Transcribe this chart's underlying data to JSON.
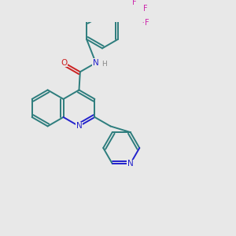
{
  "background_color": "#e8e8e8",
  "bond_color": "#2d7d7d",
  "nitrogen_color": "#2222cc",
  "oxygen_color": "#cc2222",
  "fluorine_color": "#cc22aa",
  "nh_color": "#888888",
  "lw": 1.4,
  "font_size": 7.5,
  "atoms": {
    "O": {
      "color": "#cc2222"
    },
    "N": {
      "color": "#2222cc"
    },
    "F": {
      "color": "#cc22aa"
    },
    "NH": {
      "color": "#888888"
    },
    "C": {
      "color": "#2d7d7d"
    }
  }
}
